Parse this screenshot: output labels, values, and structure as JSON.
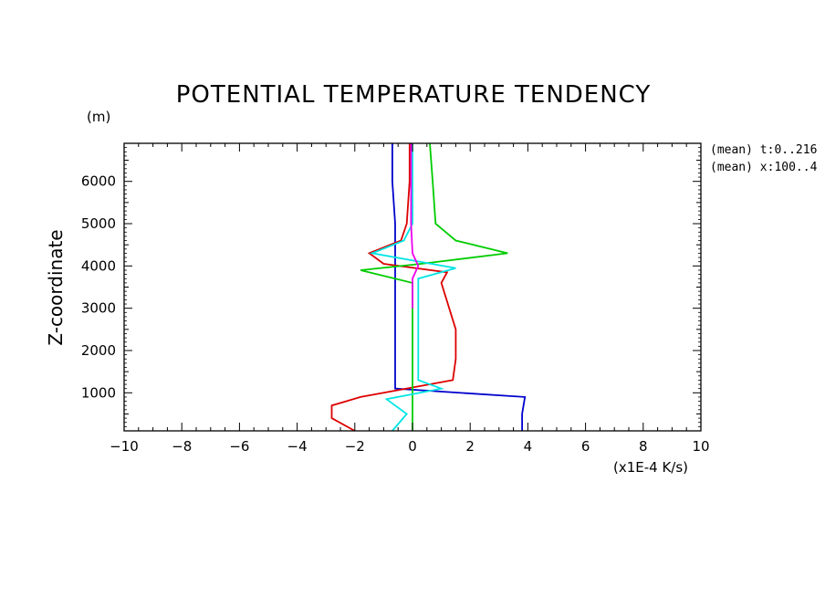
{
  "chart_data": {
    "type": "line",
    "title": "POTENTIAL TEMPERATURE TENDENCY",
    "ylabel": "Z-coordinate",
    "yunit": "(m)",
    "xunit": "(x1E-4 K/s)",
    "xlim": [
      -10,
      10
    ],
    "ylim": [
      100,
      6900
    ],
    "x_ticks": [
      -10,
      -8,
      -6,
      -4,
      -2,
      0,
      2,
      4,
      6,
      8,
      10
    ],
    "y_ticks": [
      1000,
      2000,
      3000,
      4000,
      5000,
      6000
    ],
    "grid": false,
    "annotations": [
      "(mean) t:0..216",
      "(mean) x:100..4"
    ],
    "series": [
      {
        "color": "#0000cc",
        "points": [
          [
            -0.7,
            6900
          ],
          [
            -0.7,
            6000
          ],
          [
            -0.6,
            5000
          ],
          [
            -0.6,
            4200
          ],
          [
            -0.6,
            3000
          ],
          [
            -0.6,
            2000
          ],
          [
            -0.6,
            1100
          ],
          [
            3.9,
            900
          ],
          [
            3.8,
            500
          ],
          [
            3.8,
            100
          ]
        ]
      },
      {
        "color": "#dd0000",
        "points": [
          [
            -0.1,
            6900
          ],
          [
            -0.1,
            6000
          ],
          [
            -0.2,
            5000
          ],
          [
            -0.4,
            4600
          ],
          [
            -1.5,
            4300
          ],
          [
            -1.0,
            4050
          ],
          [
            1.2,
            3850
          ],
          [
            1.0,
            3600
          ],
          [
            1.5,
            2500
          ],
          [
            1.5,
            1800
          ],
          [
            1.4,
            1300
          ],
          [
            -1.8,
            900
          ],
          [
            -2.8,
            700
          ],
          [
            -2.8,
            400
          ],
          [
            -2.0,
            100
          ]
        ]
      },
      {
        "color": "#00cc00",
        "points": [
          [
            0.6,
            6900
          ],
          [
            0.7,
            6000
          ],
          [
            0.8,
            5000
          ],
          [
            1.5,
            4600
          ],
          [
            3.3,
            4300
          ],
          [
            0.3,
            4050
          ],
          [
            -1.8,
            3900
          ],
          [
            0.0,
            3600
          ],
          [
            0.0,
            3000
          ],
          [
            0.0,
            2000
          ],
          [
            0.0,
            1000
          ],
          [
            0.0,
            100
          ]
        ]
      },
      {
        "color": "#00e5e5",
        "points": [
          [
            0.0,
            6900
          ],
          [
            0.0,
            5000
          ],
          [
            -0.3,
            4600
          ],
          [
            -1.4,
            4300
          ],
          [
            1.5,
            3950
          ],
          [
            0.2,
            3700
          ],
          [
            0.2,
            3000
          ],
          [
            0.2,
            1300
          ],
          [
            1.0,
            1100
          ],
          [
            -0.9,
            850
          ],
          [
            -0.2,
            500
          ],
          [
            -0.7,
            100
          ]
        ]
      },
      {
        "color": "#ee00ee",
        "points": [
          [
            -0.05,
            6900
          ],
          [
            -0.05,
            5000
          ],
          [
            0.0,
            4300
          ],
          [
            0.2,
            4000
          ],
          [
            0.0,
            3700
          ],
          [
            0.0,
            3000
          ]
        ]
      }
    ]
  }
}
